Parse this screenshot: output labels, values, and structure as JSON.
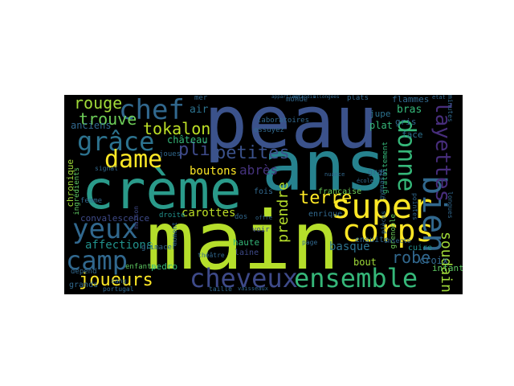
{
  "words": [
    {
      "text": "peau",
      "color": "#3b528b"
    },
    {
      "text": "main",
      "color": "#b5de2b"
    },
    {
      "text": "ans",
      "color": "#26828e"
    },
    {
      "text": "crème",
      "color": "#2a9a8a"
    },
    {
      "text": "super",
      "color": "#fde725"
    },
    {
      "text": "corps",
      "color": "#fde725"
    },
    {
      "text": "ensemble",
      "color": "#35b779"
    },
    {
      "text": "cheveux",
      "color": "#3e4a89"
    },
    {
      "text": "yeux",
      "color": "#31688e"
    },
    {
      "text": "camp",
      "color": "#31688e"
    },
    {
      "text": "chef",
      "color": "#31688e"
    },
    {
      "text": "grâce",
      "color": "#2c728e"
    },
    {
      "text": "dame",
      "color": "#fde725"
    },
    {
      "text": "donne",
      "color": "#35b779"
    },
    {
      "text": "bien",
      "color": "#31688e"
    },
    {
      "text": "layettes",
      "color": "#472d7b"
    },
    {
      "text": "tokalon",
      "color": "#bddf26"
    },
    {
      "text": "petites",
      "color": "#3b528b"
    },
    {
      "text": "rouge",
      "color": "#a0da39"
    },
    {
      "text": "trouve",
      "color": "#6ece58"
    },
    {
      "text": "pli",
      "color": "#3e4a89"
    },
    {
      "text": "joueurs",
      "color": "#fde725"
    },
    {
      "text": "robe",
      "color": "#31688e"
    },
    {
      "text": "soudain",
      "color": "#a0da39"
    },
    {
      "text": "terre",
      "color": "#fde725"
    },
    {
      "text": "prendre",
      "color": "#b5de2b"
    },
    {
      "text": "affections",
      "color": "#21918c"
    },
    {
      "text": "carottes",
      "color": "#bddf26"
    },
    {
      "text": "boutons",
      "color": "#fde725"
    },
    {
      "text": "abrès",
      "color": "#46337e"
    },
    {
      "text": "basque",
      "color": "#2c728e"
    },
    {
      "text": "bout",
      "color": "#a0da39"
    },
    {
      "text": "croix",
      "color": "#31688e"
    },
    {
      "text": "cuire",
      "color": "#21918c"
    },
    {
      "text": "infant",
      "color": "#5ec962"
    },
    {
      "text": "anciens",
      "color": "#31688e"
    },
    {
      "text": "château",
      "color": "#35b779"
    },
    {
      "text": "chronique",
      "color": "#a0da39"
    },
    {
      "text": "convalescence",
      "color": "#3e4a89"
    },
    {
      "text": "pedro",
      "color": "#35b779"
    },
    {
      "text": "enfants",
      "color": "#5ec962"
    },
    {
      "text": "grands",
      "color": "#31688e"
    },
    {
      "text": "dépend",
      "color": "#31688e"
    },
    {
      "text": "air",
      "color": "#2c728e"
    },
    {
      "text": "mer",
      "color": "#31688e"
    },
    {
      "text": "gras",
      "color": "#31688e"
    },
    {
      "text": "jupe",
      "color": "#2c728e"
    },
    {
      "text": "plat",
      "color": "#35b779"
    },
    {
      "text": "plats",
      "color": "#31688e"
    },
    {
      "text": "bras",
      "color": "#35b779"
    },
    {
      "text": "face",
      "color": "#2c728e"
    },
    {
      "text": "gris",
      "color": "#31688e"
    },
    {
      "text": "flammes",
      "color": "#31688e"
    },
    {
      "text": "française",
      "color": "#6ece58"
    },
    {
      "text": "ensuite",
      "color": "#31688e"
    },
    {
      "text": "enrique",
      "color": "#31688e"
    },
    {
      "text": "fois",
      "color": "#31688e"
    },
    {
      "text": "haute",
      "color": "#35b779"
    },
    {
      "text": "laine",
      "color": "#3e4a89"
    },
    {
      "text": "dos",
      "color": "#31688e"
    },
    {
      "text": "voir",
      "color": "#3e4a89"
    },
    {
      "text": "laboratoires",
      "color": "#31688e"
    },
    {
      "text": "essuyez",
      "color": "#31688e"
    },
    {
      "text": "droite",
      "color": "#21918c"
    },
    {
      "text": "femme",
      "color": "#31688e"
    },
    {
      "text": "joues",
      "color": "#31688e"
    },
    {
      "text": "ingrédients",
      "color": "#5ec962"
    },
    {
      "text": "signal",
      "color": "#31688e"
    },
    {
      "text": "maison",
      "color": "#3e4a89"
    },
    {
      "text": "grimacer",
      "color": "#31688e"
    },
    {
      "text": "sang",
      "color": "#31688e"
    },
    {
      "text": "taille",
      "color": "#31688e"
    },
    {
      "text": "page",
      "color": "#31688e"
    },
    {
      "text": "théâtre",
      "color": "#31688e"
    },
    {
      "text": "monde",
      "color": "#31688e"
    },
    {
      "text": "grenoble",
      "color": "#6ece58"
    },
    {
      "text": "gratuitement",
      "color": "#35b779"
    },
    {
      "text": "pointes",
      "color": "#31688e"
    },
    {
      "text": "minutes",
      "color": "#31688e"
    },
    {
      "text": "longues",
      "color": "#31688e"
    },
    {
      "text": "insecto",
      "color": "#31688e"
    },
    {
      "text": "moment",
      "color": "#31688e"
    },
    {
      "text": "portugal",
      "color": "#31688e"
    },
    {
      "text": "vaisseaux",
      "color": "#31688e"
    },
    {
      "text": "école",
      "color": "#31688e"
    },
    {
      "text": "gymnaste",
      "color": "#31688e"
    },
    {
      "text": "pièces",
      "color": "#31688e"
    },
    {
      "text": "appartient",
      "color": "#31688e"
    },
    {
      "text": "agrandis",
      "color": "#31688e"
    },
    {
      "text": "allongées",
      "color": "#31688e"
    },
    {
      "text": "état",
      "color": "#31688e"
    },
    {
      "text": "nuance",
      "color": "#31688e"
    },
    {
      "text": "offre",
      "color": "#31688e"
    }
  ]
}
